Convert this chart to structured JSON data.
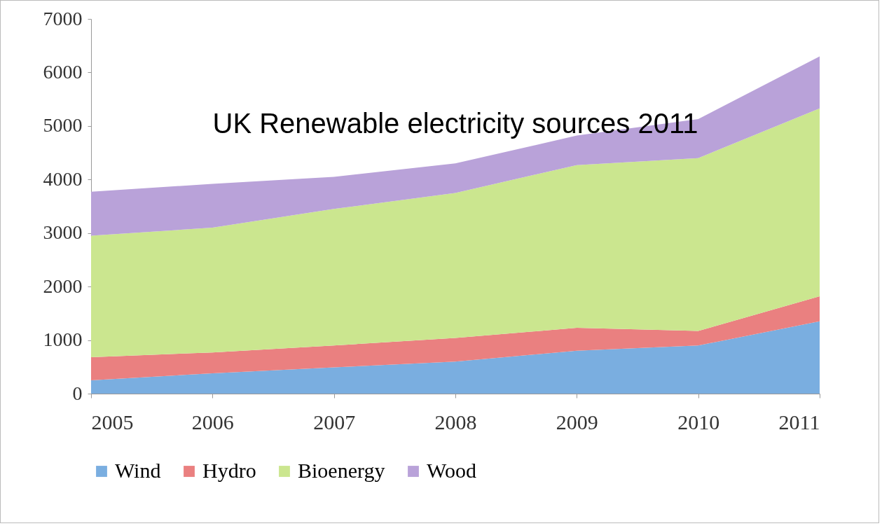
{
  "chart_data": {
    "type": "area",
    "title": "UK Renewable electricity sources 2011",
    "stacked": true,
    "categories": [
      "2005",
      "2006",
      "2007",
      "2008",
      "2009",
      "2010",
      "2011"
    ],
    "series": [
      {
        "name": "Wind",
        "color": "#7aaee0",
        "values": [
          250,
          380,
          490,
          600,
          800,
          900,
          1350
        ]
      },
      {
        "name": "Hydro",
        "color": "#ea8080",
        "values": [
          430,
          390,
          410,
          440,
          430,
          270,
          470
        ]
      },
      {
        "name": "Bioenergy",
        "color": "#cbe68f",
        "values": [
          2270,
          2330,
          2550,
          2710,
          3040,
          3230,
          3510
        ]
      },
      {
        "name": "Wood",
        "color": "#b9a2d9",
        "values": [
          820,
          820,
          600,
          550,
          550,
          730,
          970
        ]
      }
    ],
    "ylim": [
      0,
      7000
    ],
    "yticks": [
      0,
      1000,
      2000,
      3000,
      4000,
      5000,
      6000,
      7000
    ],
    "grid": false,
    "legend": "bottom"
  }
}
